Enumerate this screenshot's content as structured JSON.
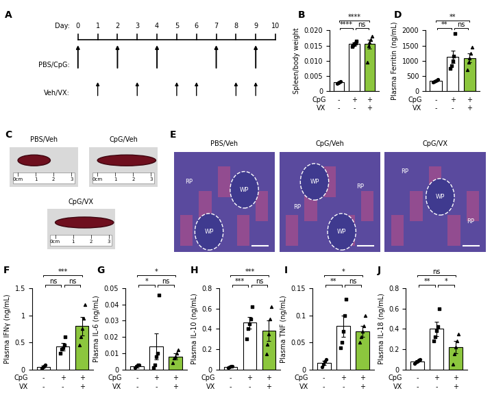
{
  "chart_data": [
    {
      "type": "bar",
      "panel_label": "B",
      "ylabel": "Spleen/body weight",
      "categories": [
        null,
        null,
        null
      ],
      "values": [
        0.003,
        0.0155,
        0.0155
      ],
      "errors": [
        0.0003,
        0.0005,
        0.0015
      ],
      "points": [
        [
          0.0025,
          0.0027,
          0.003,
          0.0033
        ],
        [
          0.0148,
          0.0152,
          0.0155,
          0.0158,
          0.0165
        ],
        [
          0.0095,
          0.015,
          0.016,
          0.017,
          0.018
        ]
      ],
      "colors": [
        "#ffffff",
        "#ffffff",
        "#8cc63e"
      ],
      "ylim": [
        0,
        0.02
      ],
      "yticks": [
        0,
        0.005,
        {
          "value": 0.01,
          "label": "0.010"
        },
        0.015,
        {
          "value": 0.02,
          "label": "0.020"
        }
      ],
      "conditions": [
        {
          "label": "CpG",
          "values": [
            "-",
            "+",
            "+"
          ]
        },
        {
          "label": "VX",
          "values": [
            "-",
            "-",
            "+"
          ]
        }
      ],
      "significance": [
        {
          "pair": [
            0,
            1
          ],
          "text": "****"
        },
        {
          "pair": [
            0,
            2
          ],
          "text": "****"
        },
        {
          "pair": [
            1,
            2
          ],
          "text": "ns"
        }
      ]
    },
    {
      "type": "bar",
      "panel_label": "D",
      "ylabel": "Plasma Ferritin (ng/mL)",
      "categories": [
        null,
        null,
        null
      ],
      "values": [
        350,
        1130,
        1100
      ],
      "errors": [
        30,
        200,
        150
      ],
      "points": [
        [
          300,
          330,
          350,
          370,
          400
        ],
        [
          750,
          850,
          1000,
          1150,
          1900
        ],
        [
          700,
          950,
          1100,
          1250,
          1450
        ]
      ],
      "colors": [
        "#ffffff",
        "#ffffff",
        "#8cc63e"
      ],
      "ylim": [
        0,
        2000
      ],
      "yticks": [
        0,
        500,
        1000,
        1500,
        2000
      ],
      "conditions": [
        {
          "label": "CpG",
          "values": [
            "-",
            "+",
            "+"
          ]
        },
        {
          "label": "VX",
          "values": [
            "-",
            "-",
            "+"
          ]
        }
      ],
      "significance": [
        {
          "pair": [
            0,
            1
          ],
          "text": "**"
        },
        {
          "pair": [
            0,
            2
          ],
          "text": "**"
        },
        {
          "pair": [
            1,
            2
          ],
          "text": "ns"
        }
      ]
    },
    {
      "type": "bar",
      "panel_label": "F",
      "ylabel": "Plasma IFNγ (ng/mL)",
      "categories": [
        null,
        null,
        null
      ],
      "values": [
        0.05,
        0.42,
        0.8
      ],
      "errors": [
        0.02,
        0.07,
        0.17
      ],
      "points": [
        [
          0.02,
          0.04,
          0.06,
          0.08
        ],
        [
          0.3,
          0.38,
          0.4,
          0.45,
          0.6
        ],
        [
          0.45,
          0.6,
          0.75,
          0.95,
          1.2
        ]
      ],
      "colors": [
        "#ffffff",
        "#ffffff",
        "#8cc63e"
      ],
      "ylim": [
        0,
        1.5
      ],
      "yticks": [
        0,
        0.5,
        1,
        1.5
      ],
      "conditions": [
        {
          "label": "CpG",
          "values": [
            "-",
            "+",
            "+"
          ]
        },
        {
          "label": "VX",
          "values": [
            "-",
            "-",
            "+"
          ]
        }
      ],
      "significance": [
        {
          "pair": [
            0,
            1
          ],
          "text": "ns"
        },
        {
          "pair": [
            0,
            2
          ],
          "text": "***"
        },
        {
          "pair": [
            1,
            2
          ],
          "text": "ns"
        }
      ]
    },
    {
      "type": "bar",
      "panel_label": "G",
      "ylabel": "Plasma IL-6 (ng/mL)",
      "categories": [
        null,
        null,
        null
      ],
      "values": [
        0.002,
        0.014,
        0.008
      ],
      "errors": [
        0.001,
        0.008,
        0.002
      ],
      "points": [
        [
          0.001,
          0.002,
          0.003,
          0.003
        ],
        [
          0.001,
          0.003,
          0.008,
          0.01,
          0.046
        ],
        [
          0.004,
          0.007,
          0.008,
          0.01,
          0.012
        ]
      ],
      "colors": [
        "#ffffff",
        "#ffffff",
        "#8cc63e"
      ],
      "ylim": [
        0,
        0.05
      ],
      "yticks": [
        0,
        0.01,
        0.02,
        0.03,
        0.04,
        0.05
      ],
      "conditions": [
        {
          "label": "CpG",
          "values": [
            "-",
            "+",
            "+"
          ]
        },
        {
          "label": "VX",
          "values": [
            "-",
            "-",
            "+"
          ]
        }
      ],
      "significance": [
        {
          "pair": [
            0,
            1
          ],
          "text": "*"
        },
        {
          "pair": [
            0,
            2
          ],
          "text": "*"
        },
        {
          "pair": [
            1,
            2
          ],
          "text": "ns"
        }
      ]
    },
    {
      "type": "bar",
      "panel_label": "H",
      "ylabel": "Plasma IL-10 (ng/mL)",
      "categories": [
        null,
        null,
        null
      ],
      "values": [
        0.025,
        0.46,
        0.38
      ],
      "errors": [
        0.005,
        0.06,
        0.1
      ],
      "points": [
        [
          0.02,
          0.025,
          0.03,
          0.03
        ],
        [
          0.3,
          0.4,
          0.45,
          0.5,
          0.62
        ],
        [
          0.15,
          0.25,
          0.35,
          0.5,
          0.62
        ]
      ],
      "colors": [
        "#ffffff",
        "#ffffff",
        "#8cc63e"
      ],
      "ylim": [
        0,
        0.8
      ],
      "yticks": [
        0,
        0.2,
        0.4,
        0.6,
        0.8
      ],
      "conditions": [
        {
          "label": "CpG",
          "values": [
            "-",
            "+",
            "+"
          ]
        },
        {
          "label": "VX",
          "values": [
            "-",
            "-",
            "+"
          ]
        }
      ],
      "significance": [
        {
          "pair": [
            0,
            1
          ],
          "text": "***"
        },
        {
          "pair": [
            0,
            2
          ],
          "text": "***"
        },
        {
          "pair": [
            1,
            2
          ],
          "text": "ns"
        }
      ]
    },
    {
      "type": "bar",
      "panel_label": "I",
      "ylabel": "Plasma TNF (ng/mL)",
      "categories": [
        null,
        null,
        null
      ],
      "values": [
        0.012,
        0.08,
        0.07
      ],
      "errors": [
        0.004,
        0.02,
        0.01
      ],
      "points": [
        [
          0.005,
          0.01,
          0.015,
          0.018
        ],
        [
          0.04,
          0.05,
          0.07,
          0.1,
          0.13
        ],
        [
          0.05,
          0.06,
          0.07,
          0.08,
          0.1
        ]
      ],
      "colors": [
        "#ffffff",
        "#ffffff",
        "#8cc63e"
      ],
      "ylim": [
        0,
        0.15
      ],
      "yticks": [
        0,
        0.05,
        0.1,
        0.15
      ],
      "conditions": [
        {
          "label": "CpG",
          "values": [
            "-",
            "+",
            "+"
          ]
        },
        {
          "label": "VX",
          "values": [
            "-",
            "-",
            "+"
          ]
        }
      ],
      "significance": [
        {
          "pair": [
            0,
            1
          ],
          "text": "**"
        },
        {
          "pair": [
            0,
            2
          ],
          "text": "*"
        },
        {
          "pair": [
            1,
            2
          ],
          "text": "ns"
        }
      ]
    },
    {
      "type": "bar",
      "panel_label": "J",
      "ylabel": "Plasma IL-18 (ng/mL)",
      "categories": [
        null,
        null,
        null
      ],
      "values": [
        0.08,
        0.4,
        0.22
      ],
      "errors": [
        0.01,
        0.07,
        0.06
      ],
      "points": [
        [
          0.06,
          0.07,
          0.08,
          0.09,
          0.1
        ],
        [
          0.28,
          0.32,
          0.38,
          0.42,
          0.6
        ],
        [
          0.05,
          0.15,
          0.22,
          0.28,
          0.35
        ]
      ],
      "colors": [
        "#ffffff",
        "#ffffff",
        "#8cc63e"
      ],
      "ylim": [
        0,
        0.8
      ],
      "yticks": [
        0,
        0.2,
        0.4,
        0.6,
        0.8
      ],
      "conditions": [
        {
          "label": "CpG",
          "values": [
            "-",
            "+",
            "+"
          ]
        },
        {
          "label": "VX",
          "values": [
            "-",
            "-",
            "+"
          ]
        }
      ],
      "significance": [
        {
          "pair": [
            0,
            1
          ],
          "text": "**"
        },
        {
          "pair": [
            0,
            2
          ],
          "text": "ns"
        },
        {
          "pair": [
            1,
            2
          ],
          "text": "*"
        }
      ]
    }
  ],
  "timeline": {
    "panel_label": "A",
    "day_label": "Day:",
    "days": [
      0,
      1,
      2,
      3,
      4,
      5,
      6,
      7,
      8,
      9,
      10
    ],
    "rows": [
      {
        "label": "PBS/CpG:",
        "days": [
          0,
          2,
          4,
          7,
          9
        ]
      },
      {
        "label": "Veh/VX:",
        "days": [
          1,
          3,
          5,
          6,
          8,
          9
        ]
      }
    ]
  },
  "photos": {
    "panel_label": "C",
    "titles": [
      "PBS/Veh",
      "CpG/Veh",
      "CpG/VX"
    ],
    "ruler_labels": [
      "0cm",
      "1",
      "2",
      "3"
    ]
  },
  "histology": {
    "panel_label": "E",
    "images": [
      {
        "title": "PBS/Veh",
        "white_pulp": [
          "WP",
          "WP"
        ],
        "red_pulp": [
          "RP"
        ]
      },
      {
        "title": "CpG/Veh",
        "white_pulp": [
          "WP",
          "WP"
        ],
        "red_pulp": [
          "RP",
          "RP"
        ]
      },
      {
        "title": "CpG/VX",
        "white_pulp": [
          "WP"
        ],
        "red_pulp": [
          "RP",
          "RP"
        ]
      }
    ]
  }
}
